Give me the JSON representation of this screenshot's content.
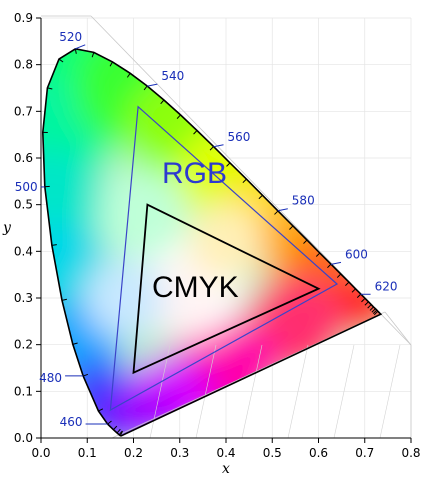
{
  "diagram": {
    "x_axis_label": "x",
    "y_axis_label": "y",
    "x_ticks": [
      "0.0",
      "0.1",
      "0.2",
      "0.3",
      "0.4",
      "0.5",
      "0.6",
      "0.7",
      "0.8"
    ],
    "y_ticks": [
      "0.0",
      "0.1",
      "0.2",
      "0.3",
      "0.4",
      "0.5",
      "0.6",
      "0.7",
      "0.8",
      "0.9"
    ],
    "xlim": [
      0,
      0.8
    ],
    "ylim": [
      0,
      0.9
    ],
    "wavelength_labels": [
      {
        "text": "460",
        "x": 0.144,
        "y": 0.03
      },
      {
        "text": "480",
        "x": 0.091,
        "y": 0.133
      },
      {
        "text": "500",
        "x": 0.008,
        "y": 0.538
      },
      {
        "text": "520",
        "x": 0.074,
        "y": 0.834
      },
      {
        "text": "540",
        "x": 0.23,
        "y": 0.754
      },
      {
        "text": "560",
        "x": 0.373,
        "y": 0.624
      },
      {
        "text": "580",
        "x": 0.512,
        "y": 0.487
      },
      {
        "text": "600",
        "x": 0.627,
        "y": 0.372
      },
      {
        "text": "620",
        "x": 0.691,
        "y": 0.308
      }
    ],
    "rgb_gamut": {
      "label": "RGB",
      "vertices": [
        [
          0.64,
          0.33
        ],
        [
          0.21,
          0.71
        ],
        [
          0.15,
          0.06
        ]
      ],
      "color": "#3b44c8"
    },
    "cmyk_gamut": {
      "label": "CMYK",
      "vertices": [
        [
          0.6,
          0.32
        ],
        [
          0.23,
          0.5
        ],
        [
          0.2,
          0.14
        ]
      ],
      "color": "#000000"
    }
  }
}
